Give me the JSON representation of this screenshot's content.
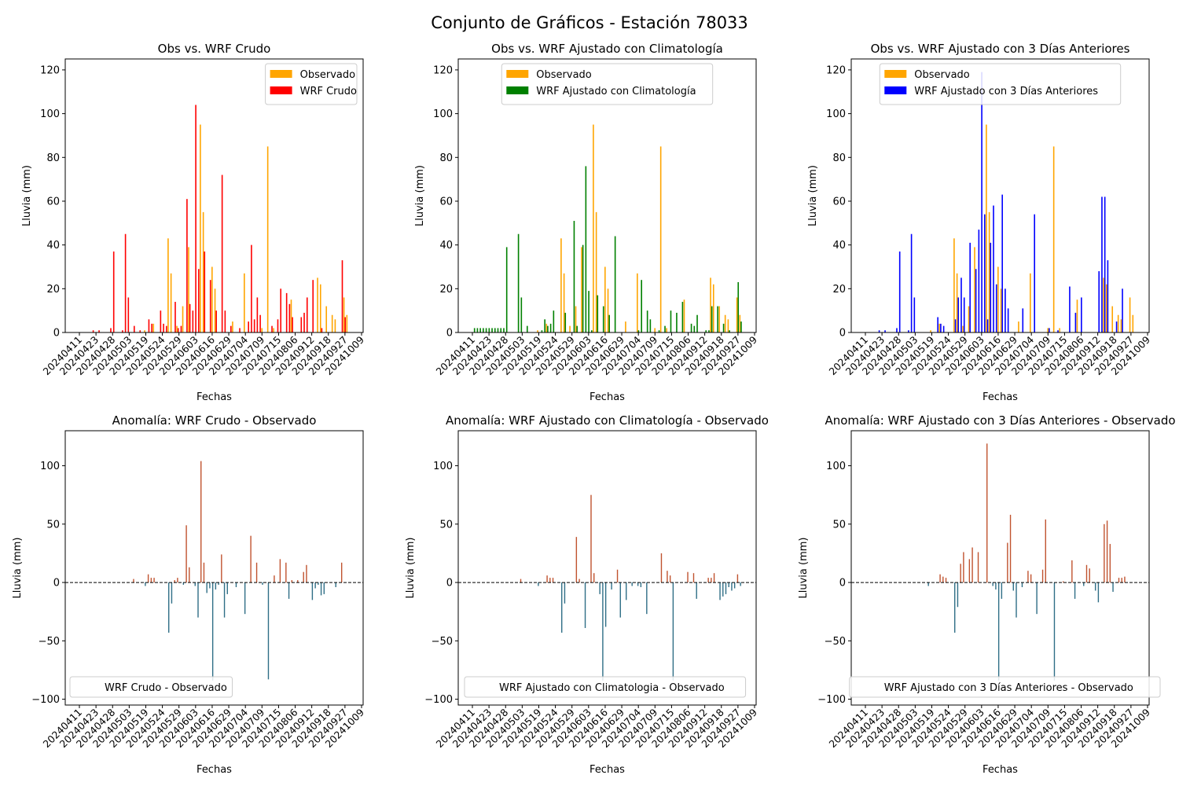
{
  "figure_title": "Conjunto de Gráficos - Estación 78033",
  "colors": {
    "observado": "#FFA500",
    "crudo": "#FF0000",
    "clima": "#008000",
    "tres": "#0000FF",
    "anom_pos": "#C0532F",
    "anom_neg": "#2F6E86"
  },
  "chart_data": [
    {
      "type": "bar",
      "title": "Obs vs. WRF Crudo",
      "xlabel": "Fechas",
      "ylabel": "Lluvia (mm)",
      "ylim": [
        0,
        125
      ],
      "yticks": [
        0,
        20,
        40,
        60,
        80,
        100,
        120
      ],
      "xticks": [
        "20240411",
        "20240423",
        "20240428",
        "20240503",
        "20240519",
        "20240524",
        "20240529",
        "20240603",
        "20240616",
        "20240629",
        "20240704",
        "20240709",
        "20240715",
        "20240806",
        "20240912",
        "20240918",
        "20240927",
        "20241009"
      ],
      "legend": "top-right",
      "series": [
        {
          "name": "Observado",
          "color": "#FFA500",
          "values": [
            0,
            0,
            0,
            0,
            0,
            0,
            0,
            0,
            0,
            0,
            0,
            0,
            0,
            0,
            0,
            0,
            0,
            0,
            0,
            0,
            0,
            0,
            1,
            0,
            0,
            4,
            0,
            0,
            0,
            0,
            43,
            27,
            0,
            3,
            0,
            12,
            0,
            39,
            0,
            0,
            0,
            95,
            55,
            0,
            0,
            30,
            20,
            0,
            0,
            0,
            0,
            0,
            5,
            0,
            0,
            0,
            27,
            0,
            0,
            0,
            0,
            0,
            2,
            0,
            85,
            0,
            2,
            0,
            0,
            0,
            0,
            0,
            15,
            0,
            0,
            0,
            0,
            0,
            0,
            0,
            0,
            25,
            22,
            0,
            12,
            0,
            8,
            6,
            0,
            0,
            16,
            8
          ]
        },
        {
          "name": "WRF Crudo",
          "color": "#FF0000",
          "values": [
            0,
            0,
            0,
            0,
            1,
            0,
            1,
            0,
            0,
            0,
            2,
            37,
            0,
            0,
            1,
            45,
            16,
            0,
            3,
            0,
            1,
            0,
            0,
            6,
            4,
            0,
            0,
            10,
            4,
            3,
            0,
            0,
            14,
            2,
            3,
            0,
            61,
            13,
            10,
            104,
            29,
            0,
            37,
            0,
            24,
            0,
            10,
            0,
            72,
            10,
            0,
            3,
            0,
            0,
            2,
            0,
            0,
            5,
            40,
            6,
            16,
            8,
            0,
            0,
            0,
            3,
            0,
            6,
            20,
            0,
            18,
            13,
            7,
            0,
            0,
            7,
            9,
            16,
            0,
            24,
            0,
            0,
            2,
            0,
            0,
            0,
            0,
            0,
            0,
            33,
            7,
            0
          ]
        }
      ]
    },
    {
      "type": "bar",
      "title": "Obs vs. WRF Ajustado con Climatología",
      "xlabel": "Fechas",
      "ylabel": "Lluvia (mm)",
      "ylim": [
        0,
        125
      ],
      "yticks": [
        0,
        20,
        40,
        60,
        80,
        100,
        120
      ],
      "xticks": [
        "20240411",
        "20240423",
        "20240428",
        "20240503",
        "20240519",
        "20240524",
        "20240529",
        "20240603",
        "20240616",
        "20240629",
        "20240704",
        "20240709",
        "20240715",
        "20240806",
        "20240912",
        "20240918",
        "20240927",
        "20241009"
      ],
      "legend": "top-center",
      "series": [
        {
          "name": "Observado",
          "color": "#FFA500",
          "values": [
            0,
            0,
            0,
            0,
            0,
            0,
            0,
            0,
            0,
            0,
            0,
            0,
            0,
            0,
            0,
            0,
            0,
            0,
            0,
            0,
            0,
            0,
            1,
            0,
            0,
            4,
            0,
            0,
            0,
            0,
            43,
            27,
            0,
            3,
            0,
            12,
            0,
            39,
            0,
            0,
            0,
            95,
            55,
            0,
            0,
            30,
            20,
            0,
            0,
            0,
            0,
            0,
            5,
            0,
            0,
            0,
            27,
            0,
            0,
            0,
            0,
            0,
            2,
            0,
            85,
            0,
            2,
            0,
            0,
            0,
            0,
            0,
            15,
            0,
            0,
            0,
            0,
            0,
            0,
            0,
            0,
            25,
            22,
            0,
            12,
            0,
            8,
            6,
            0,
            0,
            16,
            8
          ]
        },
        {
          "name": "WRF Ajustado con Climatología",
          "color": "#008000",
          "values": [
            2,
            2,
            2,
            2,
            2,
            2,
            2,
            2,
            2,
            2,
            2,
            39,
            0,
            0,
            0,
            45,
            16,
            0,
            3,
            0,
            0,
            0,
            0,
            1,
            6,
            3,
            4,
            10,
            0,
            0,
            0,
            9,
            0,
            0,
            51,
            3,
            0,
            40,
            76,
            19,
            1,
            0,
            17,
            0,
            12,
            0,
            8,
            0,
            44,
            0,
            0,
            0,
            0,
            0,
            0,
            0,
            1,
            24,
            0,
            10,
            6,
            0,
            0,
            1,
            0,
            3,
            0,
            10,
            0,
            9,
            0,
            14,
            0,
            0,
            4,
            3,
            8,
            0,
            0,
            1,
            1,
            12,
            0,
            12,
            0,
            4,
            0,
            1,
            0,
            0,
            23,
            5
          ]
        }
      ]
    },
    {
      "type": "bar",
      "title": "Obs vs. WRF Ajustado con 3 Días Anteriores",
      "xlabel": "Fechas",
      "ylabel": "Lluvia (mm)",
      "ylim": [
        0,
        125
      ],
      "yticks": [
        0,
        20,
        40,
        60,
        80,
        100,
        120
      ],
      "xticks": [
        "20240411",
        "20240423",
        "20240428",
        "20240503",
        "20240519",
        "20240524",
        "20240529",
        "20240603",
        "20240616",
        "20240629",
        "20240704",
        "20240709",
        "20240715",
        "20240806",
        "20240912",
        "20240918",
        "20240927",
        "20241009"
      ],
      "legend": "top-center",
      "series": [
        {
          "name": "Observado",
          "color": "#FFA500",
          "values": [
            0,
            0,
            0,
            0,
            0,
            0,
            0,
            0,
            0,
            0,
            0,
            0,
            0,
            0,
            0,
            0,
            0,
            0,
            0,
            0,
            0,
            0,
            1,
            0,
            0,
            4,
            0,
            0,
            0,
            0,
            43,
            27,
            0,
            3,
            0,
            12,
            0,
            39,
            0,
            0,
            0,
            95,
            55,
            0,
            0,
            30,
            20,
            0,
            0,
            0,
            0,
            0,
            5,
            0,
            0,
            0,
            27,
            0,
            0,
            0,
            0,
            0,
            2,
            0,
            85,
            0,
            2,
            0,
            0,
            0,
            0,
            0,
            15,
            0,
            0,
            0,
            0,
            0,
            0,
            0,
            0,
            25,
            22,
            0,
            12,
            0,
            8,
            6,
            0,
            0,
            16,
            8
          ]
        },
        {
          "name": "WRF Ajustado con 3 Días Anteriores",
          "color": "#0000FF",
          "values": [
            0,
            0,
            0,
            0,
            1,
            0,
            1,
            0,
            0,
            0,
            2,
            37,
            0,
            0,
            1,
            45,
            16,
            0,
            0,
            0,
            0,
            0,
            0,
            0,
            7,
            4,
            3,
            0,
            0,
            0,
            6,
            16,
            25,
            16,
            0,
            41,
            0,
            29,
            47,
            119,
            54,
            6,
            41,
            58,
            22,
            0,
            63,
            20,
            11,
            0,
            0,
            0,
            0,
            11,
            0,
            0,
            0,
            54,
            0,
            0,
            0,
            0,
            2,
            0,
            0,
            1,
            0,
            0,
            0,
            21,
            0,
            9,
            0,
            16,
            0,
            0,
            0,
            0,
            0,
            28,
            62,
            62,
            33,
            0,
            0,
            5,
            0,
            20,
            0,
            0,
            0,
            0
          ]
        }
      ]
    },
    {
      "type": "bar",
      "title": "Anomalía: WRF Crudo - Observado",
      "xlabel": "Fechas",
      "ylabel": "Lluvia (mm)",
      "ylim": [
        -105,
        130
      ],
      "yticks": [
        -100,
        -50,
        0,
        50,
        100
      ],
      "xticks": [
        "20240411",
        "20240423",
        "20240428",
        "20240503",
        "20240519",
        "20240524",
        "20240529",
        "20240603",
        "20240616",
        "20240629",
        "20240704",
        "20240709",
        "20240715",
        "20240806",
        "20240912",
        "20240918",
        "20240927",
        "20241009"
      ],
      "legend": "bottom-left",
      "reference_line": 0,
      "series": [
        {
          "name": "WRF Crudo - Observado",
          "values": [
            0,
            0,
            0,
            0,
            0,
            0,
            0,
            0,
            0,
            0,
            0,
            0,
            0,
            0,
            0,
            0,
            0,
            0,
            3,
            0,
            0,
            0,
            -3,
            7,
            4,
            4,
            0,
            0,
            0,
            0,
            -43,
            -18,
            2,
            4,
            0,
            -2,
            49,
            13,
            0,
            -3,
            -30,
            104,
            17,
            -9,
            -5,
            -84,
            -6,
            -2,
            24,
            -30,
            -10,
            0,
            0,
            -4,
            0,
            0,
            -27,
            0,
            40,
            0,
            17,
            0,
            -2,
            0,
            -83,
            0,
            6,
            0,
            20,
            0,
            17,
            -14,
            2,
            0,
            2,
            0,
            9,
            15,
            0,
            -15,
            -5,
            -2,
            -11,
            -10,
            0,
            0,
            0,
            -4,
            0,
            17,
            0,
            0
          ]
        }
      ]
    },
    {
      "type": "bar",
      "title": "Anomalía: WRF Ajustado con Climatología - Observado",
      "xlabel": "Fechas",
      "ylabel": "Lluvia (mm)",
      "ylim": [
        -105,
        130
      ],
      "yticks": [
        -100,
        -50,
        0,
        50,
        100
      ],
      "xticks": [
        "20240411",
        "20240423",
        "20240428",
        "20240503",
        "20240519",
        "20240524",
        "20240529",
        "20240603",
        "20240616",
        "20240629",
        "20240704",
        "20240709",
        "20240715",
        "20240806",
        "20240912",
        "20240918",
        "20240927",
        "20241009"
      ],
      "legend": "bottom-left",
      "reference_line": 0,
      "series": [
        {
          "name": "WRF Ajustado con Climatologia - Observado",
          "values": [
            0,
            0,
            0,
            0,
            0,
            0,
            0,
            0,
            0,
            0,
            0,
            0,
            0,
            0,
            0,
            0,
            3,
            0,
            0,
            0,
            0,
            0,
            -3,
            0,
            0,
            6,
            4,
            4,
            0,
            0,
            -43,
            -18,
            0,
            0,
            0,
            39,
            3,
            0,
            -39,
            0,
            75,
            8,
            0,
            -10,
            -84,
            -38,
            0,
            -6,
            0,
            11,
            -30,
            0,
            -15,
            0,
            -3,
            0,
            -3,
            -4,
            0,
            -27,
            0,
            0,
            0,
            0,
            25,
            0,
            10,
            6,
            -84,
            0,
            0,
            0,
            0,
            9,
            0,
            8,
            -14,
            0,
            0,
            0,
            4,
            4,
            8,
            0,
            -15,
            -12,
            -10,
            -4,
            -7,
            -5,
            7,
            -3
          ]
        }
      ]
    },
    {
      "type": "bar",
      "title": "Anomalía: WRF Ajustado con 3 Días Anteriores - Observado",
      "xlabel": "Fechas",
      "ylabel": "Lluvia (mm)",
      "ylim": [
        -105,
        130
      ],
      "yticks": [
        -100,
        -50,
        0,
        50,
        100
      ],
      "xticks": [
        "20240411",
        "20240423",
        "20240428",
        "20240503",
        "20240519",
        "20240524",
        "20240529",
        "20240603",
        "20240616",
        "20240629",
        "20240704",
        "20240709",
        "20240715",
        "20240806",
        "20240912",
        "20240918",
        "20240927",
        "20241009"
      ],
      "legend": "bottom-right",
      "reference_line": 0,
      "series": [
        {
          "name": "WRF Ajustado con 3 Días Anteriores - Observado",
          "values": [
            0,
            0,
            0,
            0,
            0,
            0,
            0,
            0,
            0,
            0,
            0,
            0,
            0,
            0,
            0,
            0,
            0,
            0,
            0,
            0,
            0,
            -3,
            0,
            0,
            0,
            7,
            5,
            4,
            0,
            0,
            -43,
            -21,
            16,
            26,
            0,
            20,
            30,
            0,
            26,
            0,
            0,
            119,
            0,
            -3,
            -6,
            -84,
            -14,
            0,
            34,
            58,
            -7,
            -30,
            0,
            -4,
            0,
            10,
            7,
            0,
            -27,
            0,
            11,
            54,
            0,
            0,
            -84,
            0,
            0,
            1,
            0,
            0,
            19,
            -14,
            0,
            0,
            -3,
            15,
            12,
            0,
            -7,
            -17,
            0,
            50,
            53,
            33,
            -8,
            0,
            4,
            4,
            5,
            0,
            0,
            0
          ]
        }
      ]
    }
  ]
}
